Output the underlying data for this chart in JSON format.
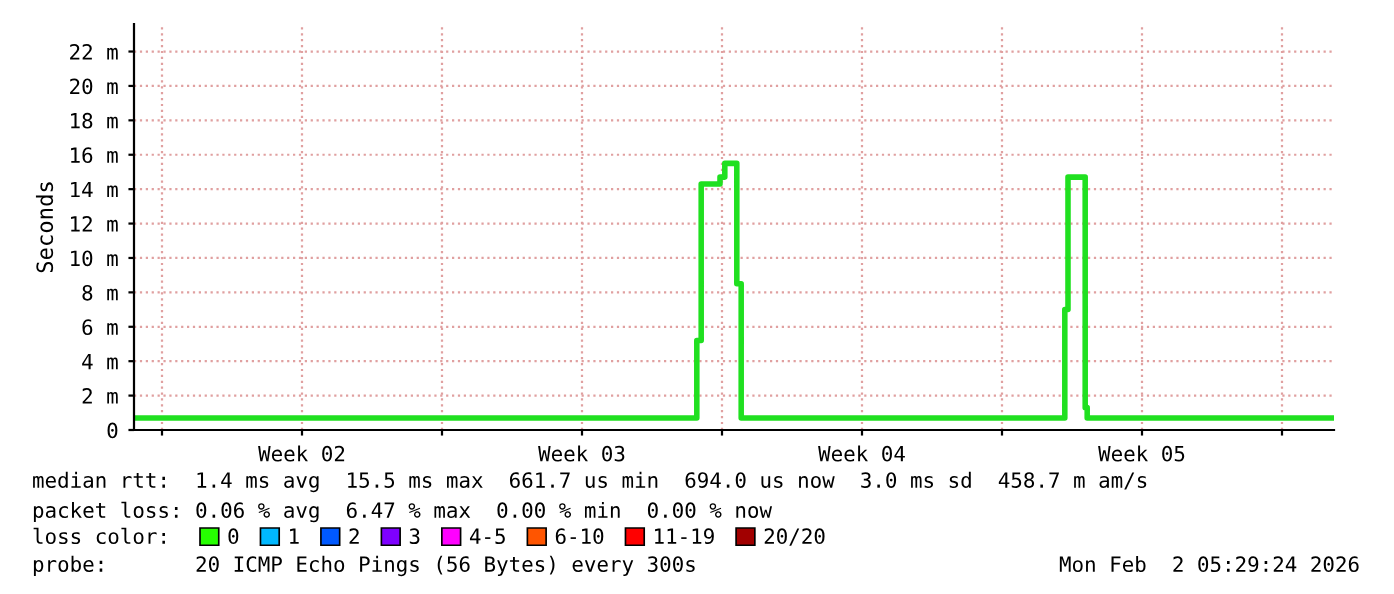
{
  "chart_data": {
    "type": "step",
    "ylabel": "Seconds",
    "xlim": [
      "2026-01-04T07:12",
      "2026-02-03T07:12"
    ],
    "ylim": [
      0,
      23.6
    ],
    "xticks": [
      {
        "value": "2026-01-05T00:00",
        "label": null
      },
      {
        "value": "2026-01-08T12:00",
        "label": "Week 02"
      },
      {
        "value": "2026-01-12T00:00",
        "label": null
      },
      {
        "value": "2026-01-15T12:00",
        "label": "Week 03"
      },
      {
        "value": "2026-01-19T00:00",
        "label": null
      },
      {
        "value": "2026-01-22T12:00",
        "label": "Week 04"
      },
      {
        "value": "2026-01-26T00:00",
        "label": null
      },
      {
        "value": "2026-01-29T12:00",
        "label": "Week 05"
      },
      {
        "value": "2026-02-02T00:00",
        "label": null
      }
    ],
    "yticks": [
      {
        "value": 0,
        "label": "0"
      },
      {
        "value": 2,
        "label": "2 m"
      },
      {
        "value": 4,
        "label": "4 m"
      },
      {
        "value": 6,
        "label": "6 m"
      },
      {
        "value": 8,
        "label": "8 m"
      },
      {
        "value": 10,
        "label": "10 m"
      },
      {
        "value": 12,
        "label": "12 m"
      },
      {
        "value": 14,
        "label": "14 m"
      },
      {
        "value": 16,
        "label": "16 m"
      },
      {
        "value": 18,
        "label": "18 m"
      },
      {
        "value": 20,
        "label": "20 m"
      },
      {
        "value": 22,
        "label": "22 m"
      }
    ],
    "grid": true,
    "legend": "bottom",
    "legend_title": "loss color:",
    "series": [
      {
        "color": "#20e020",
        "x": [
          "2026-01-04T07:12",
          "2026-01-07T07:12",
          "2026-01-10T07:12",
          "2026-01-14T07:12",
          "2026-01-18T08:53",
          "2026-01-18T11:31",
          "2026-01-18T22:48",
          "2026-01-19T01:41",
          "2026-01-19T08:53",
          "2026-01-19T11:31",
          "2026-01-23T07:12",
          "2026-01-27T13:41",
          "2026-01-27T15:36",
          "2026-01-28T01:55",
          "2026-01-28T03:07",
          "2026-01-31T07:12",
          "2026-02-03T06:00"
        ],
        "values": [
          0.7,
          0.7,
          0.7,
          0.7,
          5.2,
          14.3,
          14.7,
          15.5,
          8.5,
          0.7,
          0.7,
          7.0,
          14.7,
          1.3,
          0.7,
          0.7,
          0.7
        ]
      },
      {
        "name": "0",
        "color": "#26ff00"
      },
      {
        "name": "1",
        "color": "#00b8ff"
      },
      {
        "name": "2",
        "color": "#0059ff"
      },
      {
        "name": "3",
        "color": "#7e00ff"
      },
      {
        "name": "4-5",
        "color": "#ff00ff"
      },
      {
        "name": "6-10",
        "color": "#ff5500"
      },
      {
        "name": "11-19",
        "color": "#ff0000"
      },
      {
        "name": "20/20",
        "color": "#a10000"
      }
    ],
    "annotations": [
      "median rtt:  1.4 ms avg  15.5 ms max  661.7 us min  694.0 us now  3.0 ms sd  458.7 m am/s",
      "packet loss: 0.06 % avg  6.47 % max  0.00 % min  0.00 % now",
      "probe:       20 ICMP Echo Pings (56 Bytes) every 300s",
      "Mon Feb  2 05:29:24 2026"
    ]
  }
}
